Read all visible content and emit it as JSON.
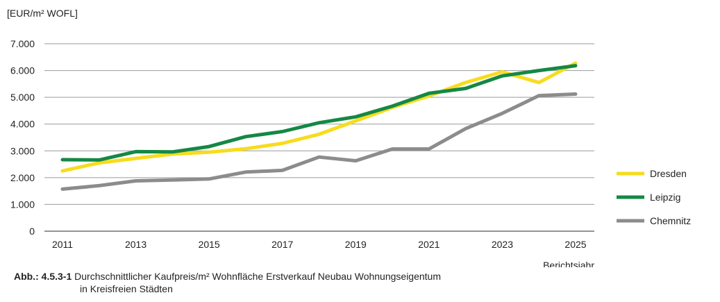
{
  "chart_data": {
    "type": "line",
    "ylabel": "[EUR/m² WOFL]",
    "xlabel": "Berichtsjahr",
    "ylim": [
      0,
      7000
    ],
    "xlim": [
      2011,
      2025
    ],
    "yticks": [
      0,
      1000,
      2000,
      3000,
      4000,
      5000,
      6000,
      7000
    ],
    "ytick_labels": [
      "0",
      "1.000",
      "2.000",
      "3.000",
      "4.000",
      "5.000",
      "6.000",
      "7.000"
    ],
    "xticks": [
      2011,
      2013,
      2015,
      2017,
      2019,
      2021,
      2023,
      2025
    ],
    "xtick_labels": [
      "2011",
      "2013",
      "2015",
      "2017",
      "2019",
      "2021",
      "2023",
      "2025"
    ],
    "grid": true,
    "legend_position": "right",
    "x": [
      2011,
      2012,
      2013,
      2014,
      2015,
      2016,
      2017,
      2018,
      2019,
      2020,
      2021,
      2022,
      2023,
      2024,
      2025
    ],
    "series": [
      {
        "name": "Dresden",
        "color": "#F7DC1E",
        "values": [
          2250,
          2550,
          2720,
          2880,
          2950,
          3080,
          3280,
          3620,
          4120,
          4620,
          5050,
          5550,
          5950,
          5550,
          6280
        ]
      },
      {
        "name": "Leipzig",
        "color": "#158844",
        "values": [
          2670,
          2660,
          2970,
          2960,
          3160,
          3530,
          3720,
          4050,
          4270,
          4670,
          5150,
          5330,
          5800,
          6000,
          6180
        ]
      },
      {
        "name": "Chemnitz",
        "color": "#8C8C8C",
        "values": [
          1570,
          1700,
          1880,
          1910,
          1950,
          2210,
          2270,
          2770,
          2630,
          3070,
          3070,
          3830,
          4400,
          5060,
          5120
        ]
      }
    ]
  },
  "caption": {
    "label": "Abb.: 4.5.3-1",
    "line1": "Durchschnittlicher Kaufpreis/m² Wohnfläche Erstverkauf Neubau Wohnungseigentum",
    "line2": "in Kreisfreien Städten"
  }
}
